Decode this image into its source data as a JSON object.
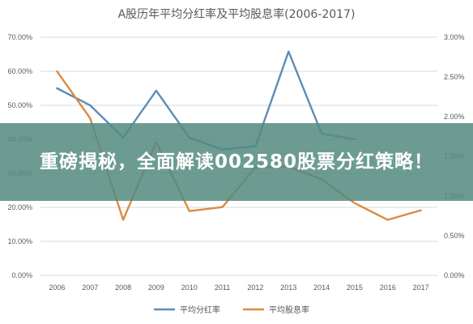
{
  "chart_data": {
    "type": "line",
    "title": "A股历年平均分红率及平均股息率(2006-2017)",
    "categories": [
      "2006",
      "2007",
      "2008",
      "2009",
      "2010",
      "2011",
      "2012",
      "2013",
      "2014",
      "2015",
      "2016",
      "2017"
    ],
    "y_left": {
      "ylim": [
        0,
        70
      ],
      "ticks": [
        "0.00%",
        "10.00%",
        "20.00%",
        "30.00%",
        "40.00%",
        "50.00%",
        "60.00%",
        "70.00%"
      ]
    },
    "y_right": {
      "ylim": [
        0,
        3
      ],
      "ticks": [
        "0.00%",
        "0.50%",
        "1.00%",
        "1.50%",
        "2.00%",
        "2.50%",
        "3.00%"
      ]
    },
    "series": [
      {
        "name": "平均分红率",
        "axis": "left",
        "color": "#5b8db8",
        "values": [
          55.0,
          50.0,
          40.5,
          54.3,
          40.5,
          37.0,
          38.0,
          65.8,
          41.7,
          40.0,
          null,
          null
        ]
      },
      {
        "name": "平均股息率",
        "axis": "right",
        "color": "#dc8a42",
        "values": [
          2.57,
          1.98,
          0.7,
          1.68,
          0.81,
          0.86,
          1.36,
          1.37,
          1.21,
          0.91,
          0.7,
          0.82
        ]
      }
    ],
    "grid": true,
    "legend": "bottom"
  },
  "banner": {
    "text": "重磅揭秘，全面解读002580股票分红策略！"
  }
}
